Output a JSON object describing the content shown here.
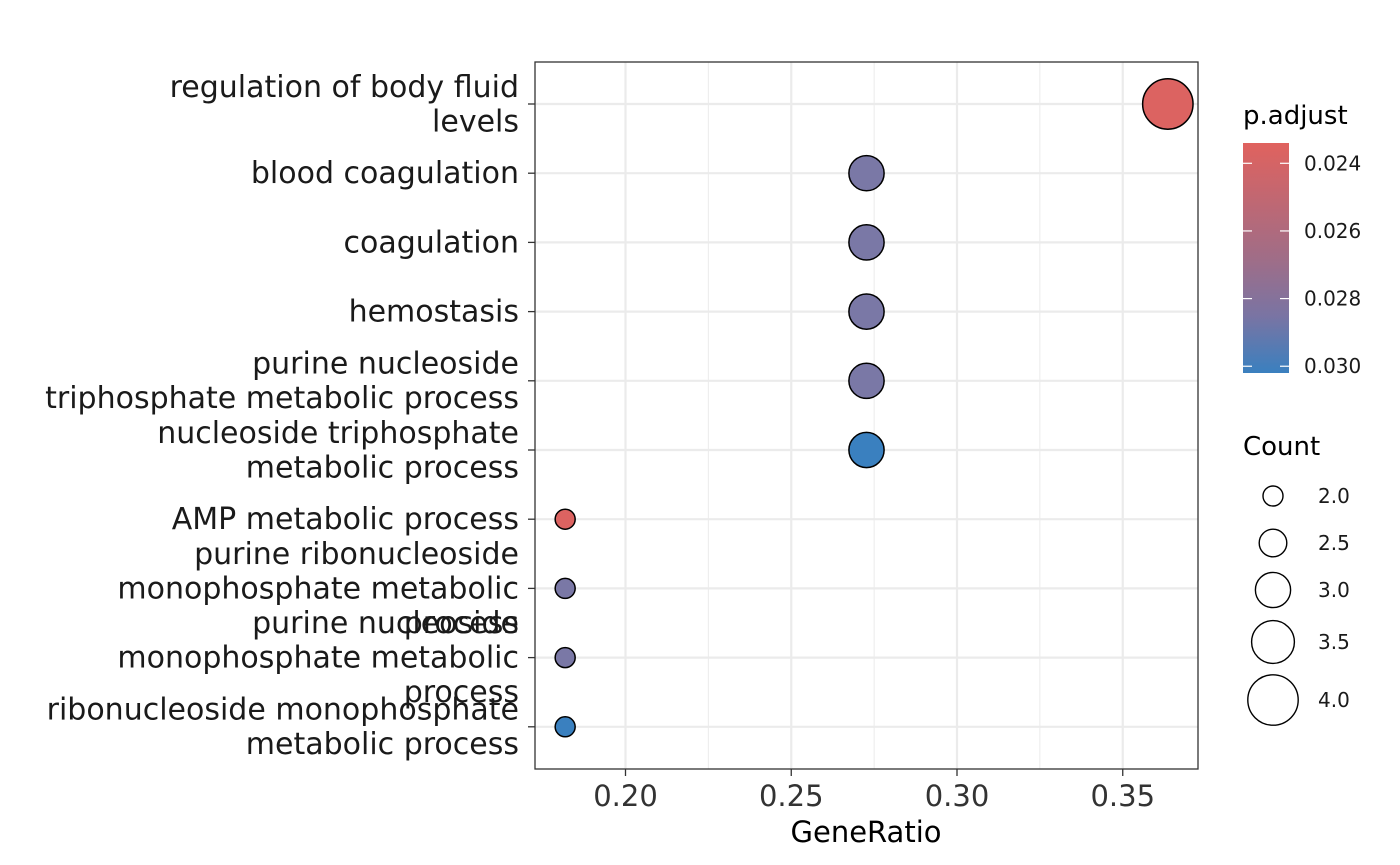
{
  "chart_data": {
    "type": "scatter",
    "subtype": "dotplot",
    "xlabel": "GeneRatio",
    "xlim": [
      0.1727,
      0.3727
    ],
    "x_ticks": [
      0.2,
      0.25,
      0.3,
      0.35
    ],
    "x_tick_labels": [
      "0.20",
      "0.25",
      "0.30",
      "0.35"
    ],
    "grid": true,
    "categories": [
      {
        "label_lines": [
          "regulation of body fluid",
          "levels"
        ],
        "x": 0.3636,
        "count": 4,
        "p_adjust": 0.0236
      },
      {
        "label_lines": [
          "blood coagulation"
        ],
        "x": 0.2727,
        "count": 3,
        "p_adjust": 0.0283
      },
      {
        "label_lines": [
          "coagulation"
        ],
        "x": 0.2727,
        "count": 3,
        "p_adjust": 0.0283
      },
      {
        "label_lines": [
          "hemostasis"
        ],
        "x": 0.2727,
        "count": 3,
        "p_adjust": 0.0283
      },
      {
        "label_lines": [
          "purine nucleoside",
          "triphosphate metabolic process"
        ],
        "x": 0.2727,
        "count": 3,
        "p_adjust": 0.0283
      },
      {
        "label_lines": [
          "nucleoside triphosphate",
          "metabolic process"
        ],
        "x": 0.2727,
        "count": 3,
        "p_adjust": 0.0302
      },
      {
        "label_lines": [
          "AMP metabolic process"
        ],
        "x": 0.1818,
        "count": 2,
        "p_adjust": 0.0236
      },
      {
        "label_lines": [
          "purine ribonucleoside",
          "monophosphate metabolic",
          "process"
        ],
        "x": 0.1818,
        "count": 2,
        "p_adjust": 0.0283
      },
      {
        "label_lines": [
          "purine nucleoside",
          "monophosphate metabolic",
          "process"
        ],
        "x": 0.1818,
        "count": 2,
        "p_adjust": 0.0283
      },
      {
        "label_lines": [
          "ribonucleoside monophosphate",
          "metabolic process"
        ],
        "x": 0.1818,
        "count": 2,
        "p_adjust": 0.0302
      }
    ],
    "color_legend": {
      "title": "p.adjust",
      "range": [
        0.0234,
        0.0302
      ],
      "ticks": [
        0.024,
        0.026,
        0.028,
        0.03
      ],
      "tick_labels": [
        "0.024",
        "0.026",
        "0.028",
        "0.030"
      ],
      "colors": {
        "low": "#e0625e",
        "mid": "#8a76a0",
        "high": "#3a80bf"
      }
    },
    "size_legend": {
      "title": "Count",
      "values": [
        2.0,
        2.5,
        3.0,
        3.5,
        4.0
      ],
      "labels": [
        "2.0",
        "2.5",
        "3.0",
        "3.5",
        "4.0"
      ],
      "size_range": [
        2,
        4
      ]
    }
  }
}
